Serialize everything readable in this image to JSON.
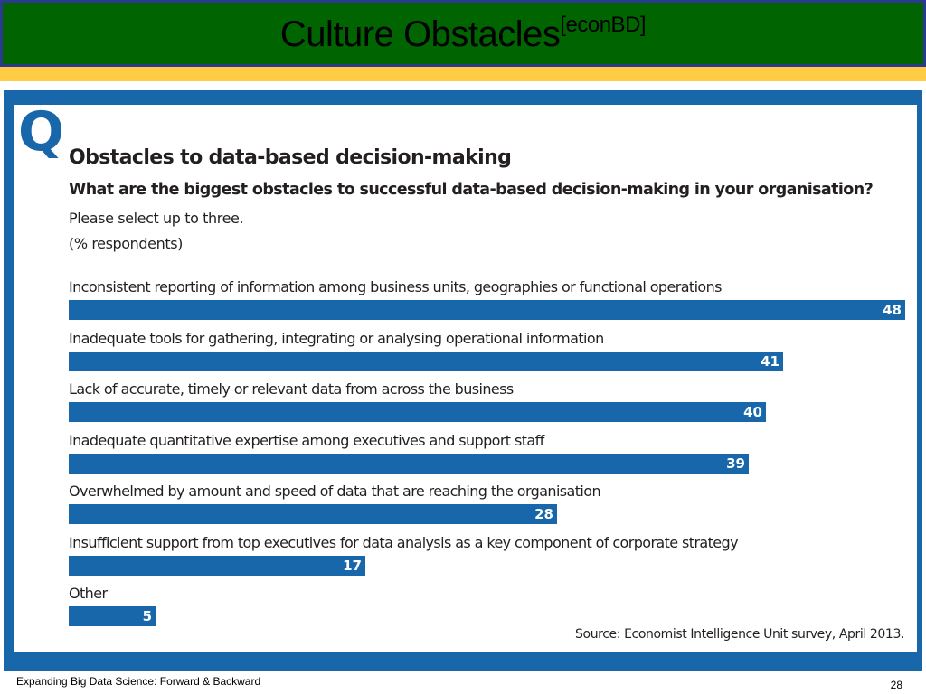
{
  "slide": {
    "title": "Culture Obstacles",
    "title_superscript": "[econBD]",
    "footer_text": "Expanding Big Data Science: Forward & Backward",
    "page_number": "28"
  },
  "colors": {
    "title_bar": "#006400",
    "title_border": "#2b3a8f",
    "accent_strip": "#ffcc44",
    "chart_blue": "#1767aa"
  },
  "chart_data": {
    "type": "bar",
    "orientation": "horizontal",
    "marker": "Q",
    "title": "Obstacles to data-based decision-making",
    "subtitle": "What are the biggest obstacles to successful data-based decision-making in your organisation?",
    "note_1": "Please select up to three.",
    "note_2": "(% respondents)",
    "categories": [
      "Inconsistent reporting of information among business units, geographies or functional operations",
      "Inadequate tools for gathering, integrating or analysing operational information",
      "Lack of accurate, timely or relevant data from across the business",
      "Inadequate quantitative expertise among executives and support staff",
      "Overwhelmed by amount and speed of data that are reaching the organisation",
      "Insufficient support from top executives for data analysis as a key component of corporate strategy",
      "Other"
    ],
    "values": [
      48,
      41,
      40,
      39,
      28,
      17,
      5
    ],
    "source": "Source: Economist Intelligence Unit survey, April 2013.",
    "grid": false,
    "legend": "none"
  }
}
